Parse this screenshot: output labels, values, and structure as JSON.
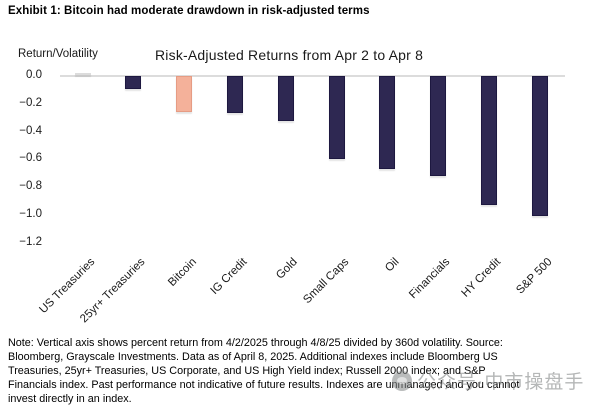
{
  "exhibit_title": "Exhibit 1: Bitcoin had moderate drawdown in risk-adjusted terms",
  "chart_data": {
    "type": "bar",
    "title": "Risk-Adjusted Returns from Apr 2 to Apr 8",
    "ylabel": "Return/Volatility",
    "xlabel": "",
    "categories": [
      "US Treasuries",
      "25yr+ Treasuries",
      "Bitcoin",
      "IG Credit",
      "Gold",
      "Small Caps",
      "Oil",
      "Financials",
      "HY Credit",
      "S&P 500"
    ],
    "values": [
      0.02,
      -0.1,
      -0.26,
      -0.27,
      -0.33,
      -0.6,
      -0.67,
      -0.72,
      -0.93,
      -1.01
    ],
    "bar_fills": [
      "#dcdcdc",
      "#2e2852",
      "#f4b19a",
      "#2e2852",
      "#2e2852",
      "#2e2852",
      "#2e2852",
      "#2e2852",
      "#2e2852",
      "#2e2852"
    ],
    "bar_borders": [
      "#d0d0d0",
      "#1d1840",
      "#e69c84",
      "#1d1840",
      "#1d1840",
      "#1d1840",
      "#1d1840",
      "#1d1840",
      "#1d1840",
      "#1d1840"
    ],
    "highlighted_category": "Bitcoin",
    "ytick_labels": [
      "0.0",
      "−0.2",
      "−0.4",
      "−0.6",
      "−0.8",
      "−1.0",
      "−1.2"
    ],
    "ytick_values": [
      0,
      -0.2,
      -0.4,
      -0.6,
      -0.8,
      -1.0,
      -1.2
    ],
    "ylim": [
      -1.2,
      0.0
    ],
    "grid": false,
    "legend": "none",
    "zero_line_color": "#dcdcdc"
  },
  "note": {
    "lines": [
      "Note: Vertical axis shows percent return from 4/2/2025 through 4/8/25 divided by 360d volatility. Source:",
      "Bloomberg, Grayscale Investments. Data as of April 8, 2025. Additional indexes include Bloomberg US",
      "Treasuries, 25yr+ Treasuries, US Corporate, and US High Yield index; Russell 2000 index; and S&P",
      "Financials index. Past performance not indicative of future results. Indexes are unmanaged and you cannot",
      "invest directly in an index."
    ]
  },
  "watermark": {
    "text": "公众号·中市操盘手"
  }
}
